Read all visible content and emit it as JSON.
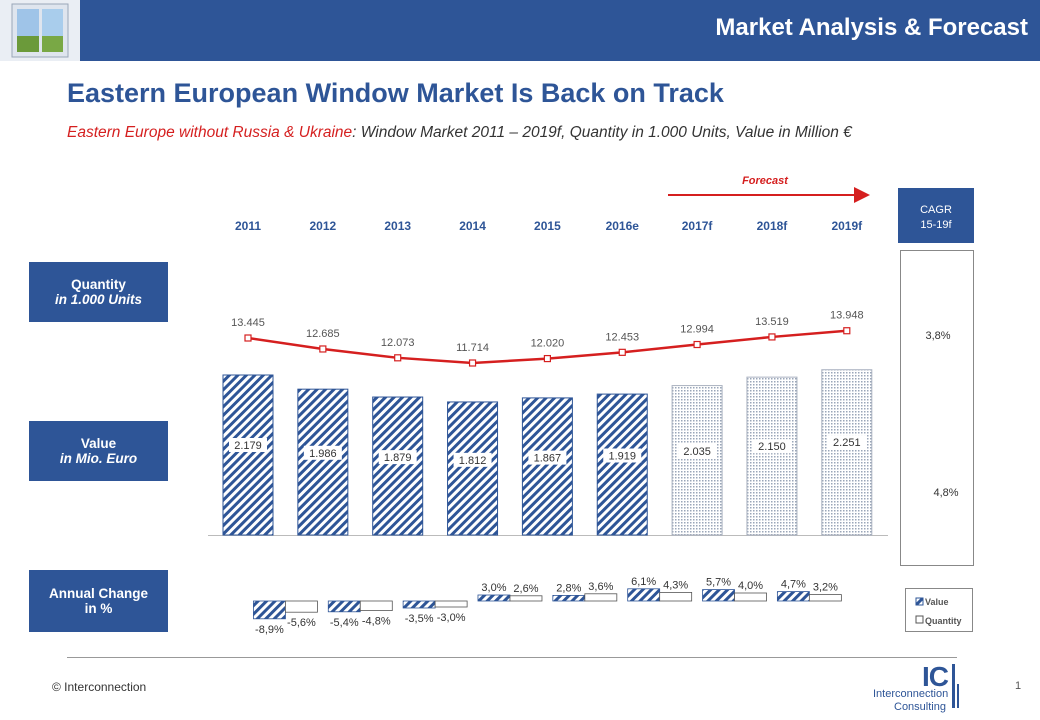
{
  "header": {
    "title": "Market Analysis & Forecast"
  },
  "main_title": "Eastern European Window Market Is Back on Track",
  "subtitle": {
    "highlight": "Eastern Europe without Russia & Ukraine",
    "rest": ": Window Market 2011 – 2019f, Quantity in 1.000 Units, Value in Million €"
  },
  "side_labels": {
    "quantity": {
      "line1": "Quantity",
      "line2": "in 1.000 Units"
    },
    "value": {
      "line1": "Value",
      "line2": "in Mio. Euro"
    },
    "change": {
      "line1": "Annual Change",
      "line2": "in %"
    }
  },
  "forecast_label": "Forecast",
  "cagr": {
    "header_line1": "CAGR",
    "header_line2": "15-19f",
    "quantity": "3,8%",
    "value": "4,8%"
  },
  "legend": {
    "value": "Value",
    "quantity": "Quantity"
  },
  "footer": {
    "copyright": "© Interconnection",
    "page": "1",
    "logo_ic": "IC",
    "logo_line1": "Interconnection",
    "logo_line2": "Consulting"
  },
  "colors": {
    "brand": "#2e5597",
    "line": "#d51f1f",
    "bar": "#2e5597"
  },
  "chart_data": {
    "type": "bar",
    "categories": [
      "2011",
      "2012",
      "2013",
      "2014",
      "2015",
      "2016e",
      "2017f",
      "2018f",
      "2019f"
    ],
    "forecast_from_index": 6,
    "quantity": {
      "values": [
        13445,
        12685,
        12073,
        11714,
        12020,
        12453,
        12994,
        13519,
        13948
      ],
      "labels": [
        "13.445",
        "12.685",
        "12.073",
        "11.714",
        "12.020",
        "12.453",
        "12.994",
        "13.519",
        "13.948"
      ]
    },
    "value": {
      "values": [
        2179,
        1986,
        1879,
        1812,
        1867,
        1919,
        2035,
        2150,
        2251
      ],
      "labels": [
        "2.179",
        "1.986",
        "1.879",
        "1.812",
        "1.867",
        "1.919",
        "2.035",
        "2.150",
        "2.251"
      ]
    },
    "annual_change": {
      "value": [
        -8.9,
        -5.4,
        -3.5,
        3.0,
        2.8,
        6.1,
        5.7,
        4.7
      ],
      "quantity": [
        -5.6,
        -4.8,
        -3.0,
        2.6,
        3.6,
        4.3,
        4.0,
        3.2
      ],
      "value_labels": [
        "-8,9%",
        "-5,4%",
        "-3,5%",
        "3,0%",
        "2,8%",
        "6,1%",
        "5,7%",
        "4,7%"
      ],
      "quantity_labels": [
        "-5,6%",
        "-4,8%",
        "-3,0%",
        "2,6%",
        "3,6%",
        "4,3%",
        "4,0%",
        "3,2%"
      ]
    }
  }
}
